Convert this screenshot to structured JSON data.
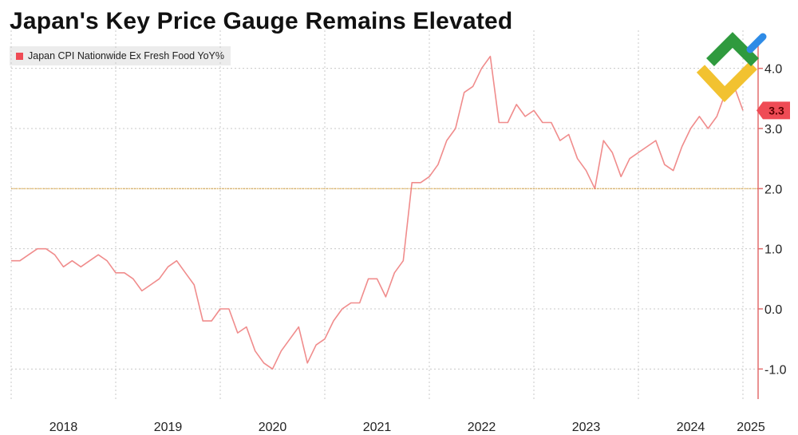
{
  "colors": {
    "series": "#f08c8c",
    "axis": "#e36e6e",
    "reference": "#d9a441",
    "callout_bg": "#ef4b55",
    "legend_swatch": "#ef4b55",
    "logo_green": "#2f9a3e",
    "logo_yellow": "#f2c230",
    "logo_blue": "#2e8be6"
  },
  "chart_data": {
    "type": "line",
    "title": "Japan's Key Price Gauge Remains Elevated",
    "legend": [
      {
        "name": "Japan CPI Nationwide Ex Fresh Food YoY%"
      }
    ],
    "xlabel": "",
    "ylabel": "",
    "x_start": "2018-01",
    "x_end": "2025-05",
    "xlim": [
      "2018-01",
      "2025-05"
    ],
    "ylim": [
      -1.5,
      4.5
    ],
    "yticks": [
      4.0,
      3.0,
      2.0,
      1.0,
      0.0,
      -1.0
    ],
    "ytick_labels": [
      "4.0",
      "3.0",
      "2.0",
      "1.0",
      "0.0",
      "-1.0"
    ],
    "xtick_labels": [
      "2018",
      "2019",
      "2020",
      "2021",
      "2022",
      "2023",
      "2024",
      "2025"
    ],
    "reference_line": 2.0,
    "last_value_label": "3.3",
    "series": [
      {
        "name": "Japan CPI Nationwide Ex Fresh Food YoY%",
        "values": [
          0.8,
          0.8,
          0.9,
          1.0,
          1.0,
          0.9,
          0.7,
          0.8,
          0.7,
          0.8,
          0.9,
          0.8,
          0.6,
          0.6,
          0.5,
          0.3,
          0.4,
          0.5,
          0.7,
          0.8,
          0.6,
          0.4,
          -0.2,
          -0.2,
          0.0,
          0.0,
          -0.4,
          -0.3,
          -0.7,
          -0.9,
          -1.0,
          -0.7,
          -0.5,
          -0.3,
          -0.9,
          -0.6,
          -0.5,
          -0.2,
          0.0,
          0.1,
          0.1,
          0.5,
          0.5,
          0.2,
          0.6,
          0.8,
          2.1,
          2.1,
          2.2,
          2.4,
          2.8,
          3.0,
          3.6,
          3.7,
          4.0,
          4.2,
          3.1,
          3.1,
          3.4,
          3.2,
          3.3,
          3.1,
          3.1,
          2.8,
          2.9,
          2.5,
          2.3,
          2.0,
          2.8,
          2.6,
          2.2,
          2.5,
          2.6,
          2.7,
          2.8,
          2.4,
          2.3,
          2.7,
          3.0,
          3.2,
          3.0,
          3.2,
          3.6,
          3.7,
          3.3
        ]
      }
    ]
  }
}
